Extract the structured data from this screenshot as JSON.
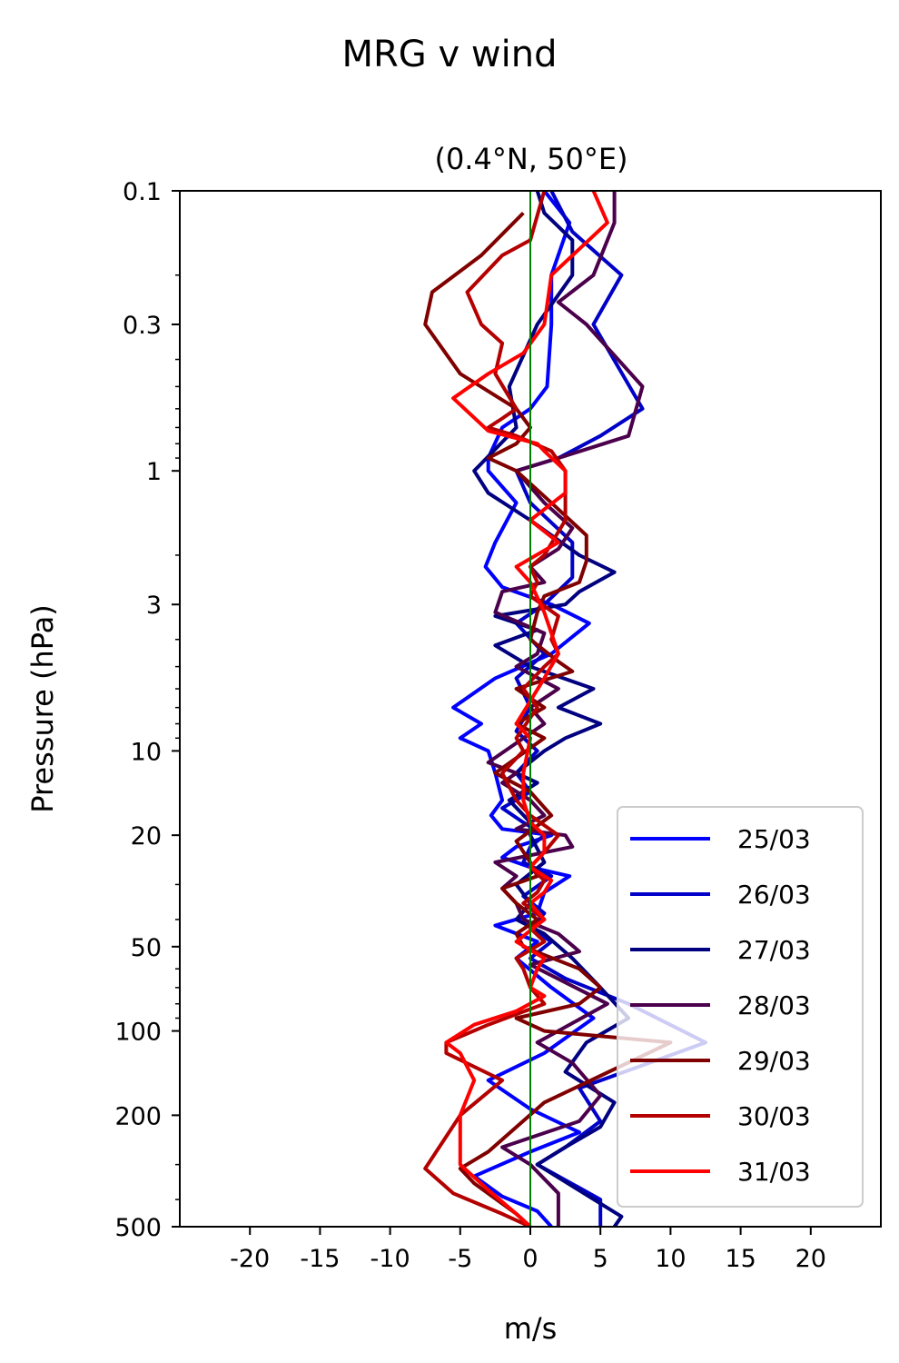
{
  "chart_data": {
    "type": "line",
    "title": "MRG v wind",
    "subtitle": "(0.4°N, 50°E)",
    "xlabel": "m/s",
    "ylabel": "Pressure (hPa)",
    "xlim": [
      -25,
      25
    ],
    "ylim": [
      500,
      0.1
    ],
    "y_scale": "log",
    "y_inverted": true,
    "x_ticks": [
      -20,
      -15,
      -10,
      -5,
      0,
      5,
      10,
      15,
      20
    ],
    "x_tick_labels": [
      "-20",
      "-15",
      "-10",
      "-5",
      "0",
      "5",
      "10",
      "15",
      "20"
    ],
    "y_ticks": [
      0.1,
      0.3,
      1,
      3,
      10,
      20,
      50,
      100,
      200,
      500
    ],
    "y_tick_labels": [
      "0.1",
      "0.3",
      "1",
      "3",
      "10",
      "20",
      "50",
      "100",
      "200",
      "500"
    ],
    "zero_line_color": "#008000",
    "legend_position": "lower right",
    "grid": false,
    "series": [
      {
        "name": "25/03",
        "color": "#0000ff",
        "points": [
          [
            1,
            0.1
          ],
          [
            2.8,
            0.13
          ],
          [
            1.5,
            0.2
          ],
          [
            1.5,
            0.3
          ],
          [
            1.2,
            0.5
          ],
          [
            0,
            0.6
          ],
          [
            -2,
            0.7
          ],
          [
            -3,
            0.9
          ],
          [
            -3,
            1
          ],
          [
            -1,
            1.3
          ],
          [
            -2.5,
            1.8
          ],
          [
            -3.2,
            2.2
          ],
          [
            -2,
            2.6
          ],
          [
            1.5,
            3
          ],
          [
            4.2,
            3.5
          ],
          [
            1.5,
            4.5
          ],
          [
            -2.5,
            5.5
          ],
          [
            -5.5,
            7
          ],
          [
            -3.5,
            8
          ],
          [
            -5,
            9
          ],
          [
            -3,
            10
          ],
          [
            -2.5,
            12
          ],
          [
            -2,
            15
          ],
          [
            -2.8,
            17
          ],
          [
            -2,
            19
          ],
          [
            1.5,
            20
          ],
          [
            -1,
            22
          ],
          [
            -2,
            24
          ],
          [
            0,
            26
          ],
          [
            2.8,
            28
          ],
          [
            1,
            32
          ],
          [
            0.5,
            38
          ],
          [
            -2.5,
            42
          ],
          [
            0.5,
            48
          ],
          [
            -1,
            55
          ],
          [
            1.5,
            70
          ],
          [
            4.5,
            90
          ],
          [
            1,
            120
          ],
          [
            -3,
            150
          ],
          [
            0,
            190
          ],
          [
            3.5,
            230
          ],
          [
            0,
            270
          ],
          [
            -4,
            330
          ],
          [
            -2,
            390
          ],
          [
            0.5,
            440
          ],
          [
            1.5,
            500
          ]
        ]
      },
      {
        "name": "26/03",
        "color": "#0000c8",
        "points": [
          [
            1.5,
            0.1
          ],
          [
            3,
            0.14
          ],
          [
            6.5,
            0.2
          ],
          [
            4.5,
            0.3
          ],
          [
            8,
            0.6
          ],
          [
            5,
            0.75
          ],
          [
            2,
            0.9
          ],
          [
            -1,
            1
          ],
          [
            0,
            1.3
          ],
          [
            3,
            1.8
          ],
          [
            3,
            2.4
          ],
          [
            1,
            3
          ],
          [
            -1,
            3.5
          ],
          [
            1,
            4.5
          ],
          [
            -1,
            5.5
          ],
          [
            0,
            7
          ],
          [
            -1,
            8.5
          ],
          [
            0.5,
            10
          ],
          [
            -1,
            12
          ],
          [
            0,
            14
          ],
          [
            -2,
            16
          ],
          [
            -0.5,
            18
          ],
          [
            1,
            20
          ],
          [
            0,
            22
          ],
          [
            -0.5,
            25
          ],
          [
            1.5,
            28
          ],
          [
            -0.5,
            33
          ],
          [
            1,
            38
          ],
          [
            0,
            43
          ],
          [
            1.5,
            48
          ],
          [
            0,
            55
          ],
          [
            2.5,
            65
          ],
          [
            7,
            80
          ],
          [
            12.5,
            110
          ],
          [
            3.5,
            160
          ],
          [
            5,
            210
          ],
          [
            2.5,
            260
          ],
          [
            0.5,
            300
          ],
          [
            5,
            400
          ],
          [
            5,
            500
          ]
        ]
      },
      {
        "name": "27/03",
        "color": "#000080",
        "points": [
          [
            0.5,
            0.1
          ],
          [
            1,
            0.12
          ],
          [
            3,
            0.15
          ],
          [
            3,
            0.2
          ],
          [
            0.5,
            0.3
          ],
          [
            -1.5,
            0.5
          ],
          [
            -1,
            0.7
          ],
          [
            -4,
            1
          ],
          [
            -3,
            1.2
          ],
          [
            0,
            1.5
          ],
          [
            3.5,
            2
          ],
          [
            6,
            2.3
          ],
          [
            3.5,
            2.7
          ],
          [
            2.5,
            3
          ],
          [
            -2.5,
            3.3
          ],
          [
            0.5,
            3.7
          ],
          [
            -2.5,
            4.2
          ],
          [
            0,
            5
          ],
          [
            4.5,
            6
          ],
          [
            2,
            7
          ],
          [
            5,
            8
          ],
          [
            2.5,
            9
          ],
          [
            1,
            10
          ],
          [
            -1,
            12
          ],
          [
            0.5,
            13
          ],
          [
            -1.5,
            15
          ],
          [
            0,
            18
          ],
          [
            0,
            20
          ],
          [
            1,
            25
          ],
          [
            -1,
            30
          ],
          [
            0,
            35
          ],
          [
            -1,
            40
          ],
          [
            1,
            45
          ],
          [
            3,
            55
          ],
          [
            5,
            70
          ],
          [
            7,
            90
          ],
          [
            4,
            110
          ],
          [
            2.5,
            140
          ],
          [
            6,
            180
          ],
          [
            5,
            220
          ],
          [
            2.5,
            260
          ],
          [
            0.5,
            300
          ],
          [
            6.5,
            460
          ],
          [
            6,
            500
          ]
        ]
      },
      {
        "name": "28/03",
        "color": "#4b004b",
        "points": [
          [
            6,
            0.1
          ],
          [
            6,
            0.13
          ],
          [
            4.5,
            0.2
          ],
          [
            2,
            0.25
          ],
          [
            4,
            0.3
          ],
          [
            8,
            0.5
          ],
          [
            7,
            0.75
          ],
          [
            2,
            0.9
          ],
          [
            -1,
            1
          ],
          [
            1,
            1.3
          ],
          [
            3,
            1.6
          ],
          [
            2,
            1.9
          ],
          [
            0,
            2.2
          ],
          [
            1,
            2.5
          ],
          [
            -2,
            2.7
          ],
          [
            -2.5,
            3.2
          ],
          [
            1,
            3.8
          ],
          [
            0.5,
            4.5
          ],
          [
            -1,
            5
          ],
          [
            2,
            6
          ],
          [
            0,
            7
          ],
          [
            1,
            8
          ],
          [
            -3,
            11
          ],
          [
            -1,
            12
          ],
          [
            -2,
            13
          ],
          [
            0,
            15
          ],
          [
            1,
            17
          ],
          [
            -1,
            19
          ],
          [
            2.5,
            20
          ],
          [
            3,
            22
          ],
          [
            -2.5,
            25
          ],
          [
            -1,
            28
          ],
          [
            -2,
            31
          ],
          [
            -1,
            35
          ],
          [
            -0.5,
            40
          ],
          [
            2,
            45
          ],
          [
            3.5,
            52
          ],
          [
            0,
            58
          ],
          [
            5.5,
            80
          ],
          [
            0.5,
            110
          ],
          [
            3,
            130
          ],
          [
            5,
            170
          ],
          [
            3.5,
            210
          ],
          [
            -2,
            260
          ],
          [
            0,
            300
          ],
          [
            2,
            380
          ],
          [
            2,
            500
          ]
        ]
      },
      {
        "name": "29/03",
        "color": "#800000",
        "points": [
          [
            -0.5,
            0.12
          ],
          [
            -3.5,
            0.17
          ],
          [
            -7,
            0.23
          ],
          [
            -7.5,
            0.3
          ],
          [
            -5,
            0.45
          ],
          [
            -1,
            0.6
          ],
          [
            0,
            0.7
          ],
          [
            -1,
            0.8
          ],
          [
            -3,
            0.9
          ],
          [
            -1,
            1
          ],
          [
            1.5,
            1.3
          ],
          [
            4,
            1.7
          ],
          [
            4,
            2.1
          ],
          [
            3.5,
            2.5
          ],
          [
            1,
            2.8
          ],
          [
            0.5,
            3.2
          ],
          [
            0,
            4
          ],
          [
            2,
            4.8
          ],
          [
            3,
            5.2
          ],
          [
            -1,
            6
          ],
          [
            1,
            7
          ],
          [
            -1,
            8
          ],
          [
            1,
            9
          ],
          [
            -2.5,
            12
          ],
          [
            0,
            14
          ],
          [
            1.5,
            17
          ],
          [
            -1,
            21
          ],
          [
            0,
            25
          ],
          [
            0.5,
            28
          ],
          [
            -2,
            31
          ],
          [
            -1,
            35
          ],
          [
            0.5,
            40
          ],
          [
            -1,
            45
          ],
          [
            -0.5,
            50
          ],
          [
            3.5,
            60
          ],
          [
            5,
            70
          ],
          [
            3.5,
            80
          ],
          [
            -1,
            90
          ],
          [
            1,
            100
          ],
          [
            10,
            110
          ],
          [
            1,
            180
          ],
          [
            -3,
            270
          ],
          [
            -5,
            310
          ],
          [
            -4,
            350
          ],
          [
            -1,
            450
          ],
          [
            0,
            500
          ]
        ]
      },
      {
        "name": "30/03",
        "color": "#b40000",
        "points": [
          [
            1,
            0.1
          ],
          [
            0,
            0.15
          ],
          [
            -2,
            0.17
          ],
          [
            -4.5,
            0.23
          ],
          [
            -3.5,
            0.3
          ],
          [
            -2,
            0.35
          ],
          [
            -2.5,
            0.45
          ],
          [
            -1,
            0.6
          ],
          [
            -2,
            0.65
          ],
          [
            -3,
            0.7
          ],
          [
            -1,
            0.75
          ],
          [
            1.5,
            0.85
          ],
          [
            2.5,
            1
          ],
          [
            2.5,
            1.5
          ],
          [
            1,
            2
          ],
          [
            0,
            2.2
          ],
          [
            0.5,
            2.5
          ],
          [
            0,
            2.8
          ],
          [
            2,
            3.3
          ],
          [
            1.5,
            4
          ],
          [
            2,
            4.5
          ],
          [
            1,
            5
          ],
          [
            -0.5,
            6
          ],
          [
            0.5,
            7
          ],
          [
            -1,
            9
          ],
          [
            -0.5,
            10
          ],
          [
            -2,
            12
          ],
          [
            -1,
            15
          ],
          [
            0,
            17
          ],
          [
            2,
            20
          ],
          [
            1,
            23
          ],
          [
            0,
            26
          ],
          [
            1,
            29
          ],
          [
            0.5,
            32
          ],
          [
            -0.5,
            35
          ],
          [
            1,
            40
          ],
          [
            0,
            43
          ],
          [
            1,
            48
          ],
          [
            -1,
            55
          ],
          [
            -0.5,
            60
          ],
          [
            0,
            70
          ],
          [
            1,
            80
          ],
          [
            -3,
            95
          ],
          [
            -6,
            110
          ],
          [
            -6,
            120
          ],
          [
            -2,
            150
          ],
          [
            -5,
            200
          ],
          [
            -7.5,
            310
          ],
          [
            -5.5,
            380
          ],
          [
            -2,
            450
          ],
          [
            0,
            500
          ]
        ]
      },
      {
        "name": "31/03",
        "color": "#ff0000",
        "points": [
          [
            4.5,
            0.1
          ],
          [
            5.5,
            0.13
          ],
          [
            1.5,
            0.2
          ],
          [
            1,
            0.3
          ],
          [
            -0.5,
            0.38
          ],
          [
            -3,
            0.45
          ],
          [
            -5.5,
            0.55
          ],
          [
            -3,
            0.72
          ],
          [
            0.5,
            0.8
          ],
          [
            1,
            0.85
          ],
          [
            2.5,
            1
          ],
          [
            2.5,
            1.2
          ],
          [
            0,
            1.5
          ],
          [
            2,
            1.8
          ],
          [
            -1,
            2.2
          ],
          [
            0,
            2.5
          ],
          [
            1,
            3.2
          ],
          [
            2,
            4.5
          ],
          [
            1,
            5.5
          ],
          [
            -1,
            8
          ],
          [
            0,
            9
          ],
          [
            -0.5,
            12
          ],
          [
            -0.5,
            15
          ],
          [
            0,
            18
          ],
          [
            1,
            20
          ],
          [
            1,
            23
          ],
          [
            0,
            26
          ],
          [
            1.5,
            29
          ],
          [
            1,
            32
          ],
          [
            0,
            35
          ],
          [
            1,
            40
          ],
          [
            -1,
            48
          ],
          [
            1,
            55
          ],
          [
            0.5,
            60
          ],
          [
            0,
            70
          ],
          [
            1,
            75
          ],
          [
            -1,
            85
          ],
          [
            -4,
            95
          ],
          [
            -6,
            110
          ],
          [
            -5,
            120
          ],
          [
            -4,
            150
          ],
          [
            -5,
            200
          ],
          [
            -5,
            250
          ],
          [
            -5,
            300
          ],
          [
            -3,
            370
          ],
          [
            -1,
            450
          ],
          [
            0,
            500
          ]
        ]
      }
    ]
  }
}
